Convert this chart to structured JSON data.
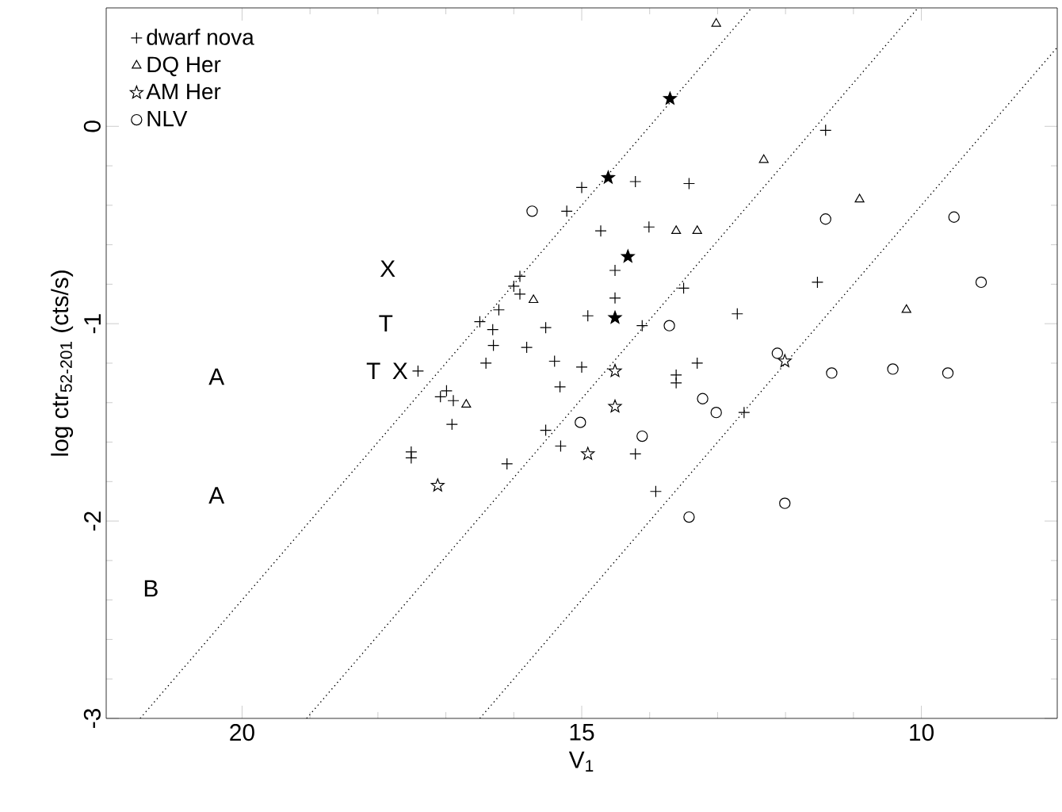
{
  "chart_data": {
    "type": "scatter",
    "xlabel": "V$_{1}$",
    "ylabel": "log ctr$_{52-201}$ (cts/s)",
    "xlim": [
      22,
      8
    ],
    "ylim": [
      -3,
      0.6
    ],
    "xticks": [
      20,
      15,
      10
    ],
    "yticks": [
      -3,
      -2,
      -1,
      0
    ],
    "legend": "top left",
    "grid": false,
    "series": [
      {
        "name": "dwarf nova",
        "marker": "cross",
        "color": "#000000",
        "x": [
          15.91,
          16.0,
          15.91,
          16.22,
          16.5,
          16.31,
          15.53,
          16.3,
          15.81,
          16.41,
          15.4,
          17.41,
          15.32,
          16.99,
          17.08,
          16.89,
          16.91,
          17.51,
          17.51,
          16.1,
          15.53,
          15.31,
          15.22,
          11.41,
          15.0,
          14.21,
          13.42,
          14.72,
          14.01,
          11.53,
          14.51,
          13.5,
          14.51,
          12.71,
          14.91,
          14.11,
          15.0,
          13.61,
          13.61,
          13.3,
          12.61,
          14.21,
          13.91
        ],
        "values": [
          -0.76,
          -0.81,
          -0.85,
          -0.93,
          -0.99,
          -1.03,
          -1.02,
          -1.11,
          -1.12,
          -1.2,
          -1.19,
          -1.24,
          -1.32,
          -1.34,
          -1.37,
          -1.39,
          -1.51,
          -1.65,
          -1.68,
          -1.71,
          -1.54,
          -1.62,
          -0.43,
          -0.02,
          -0.31,
          -0.28,
          -0.29,
          -0.53,
          -0.51,
          -0.79,
          -0.73,
          -0.82,
          -0.87,
          -0.95,
          -0.96,
          -1.01,
          -1.22,
          -1.26,
          -1.3,
          -1.2,
          -1.45,
          -1.66,
          -1.85
        ]
      },
      {
        "name": "DQ Her",
        "marker": "triangle",
        "color": "#000000",
        "x": [
          13.02,
          10.91,
          10.22
        ],
        "values": [
          0.52,
          -0.37,
          -0.93
        ]
      },
      {
        "name": "AM Her",
        "marker": "star",
        "color": "#000000",
        "x": [
          17.12,
          12.01,
          14.51,
          14.51,
          14.91
        ],
        "values": [
          -1.82,
          -1.19,
          -1.24,
          -1.42,
          -1.66
        ]
      },
      {
        "name": "NLV",
        "marker": "circle",
        "color": "#000000",
        "x": [
          15.73,
          11.41,
          9.52,
          9.12,
          13.71,
          12.12,
          11.32,
          10.42,
          9.61,
          13.22,
          13.02,
          15.02,
          14.11,
          13.42,
          12.01
        ],
        "values": [
          -0.43,
          -0.47,
          -0.46,
          -0.79,
          -1.01,
          -1.15,
          -1.25,
          -1.23,
          -1.25,
          -1.38,
          -1.45,
          -1.5,
          -1.57,
          -1.98,
          -1.91
        ]
      },
      {
        "marker": "triangle",
        "color": "#000000",
        "x": [
          15.71,
          16.7,
          12.32,
          13.61,
          13.3
        ],
        "values": [
          -0.88,
          -1.41,
          -0.17,
          -0.53,
          -0.53
        ]
      },
      {
        "marker": "star",
        "color": "#000000",
        "x": [
          13.7,
          14.61,
          14.32,
          14.51
        ],
        "values": [
          0.14,
          -0.26,
          -0.66,
          -0.97
        ]
      },
      {
        "type": "line",
        "line_style": "dotted",
        "marker": "none",
        "color": "#000000",
        "x": [
          21.5,
          12.5
        ],
        "values": [
          -3,
          0.6
        ]
      },
      {
        "type": "line",
        "line_style": "dotted",
        "marker": "none",
        "color": "#000000",
        "x": [
          19.05,
          10.05
        ],
        "values": [
          -3,
          0.6
        ]
      },
      {
        "type": "line",
        "line_style": "dotted",
        "marker": "none",
        "color": "#000000",
        "x": [
          16.5,
          8.0
        ],
        "values": [
          -3,
          0.4
        ]
      }
    ],
    "annotations": [
      "X",
      "T",
      "T",
      "X",
      "A",
      "A",
      "B"
    ]
  }
}
